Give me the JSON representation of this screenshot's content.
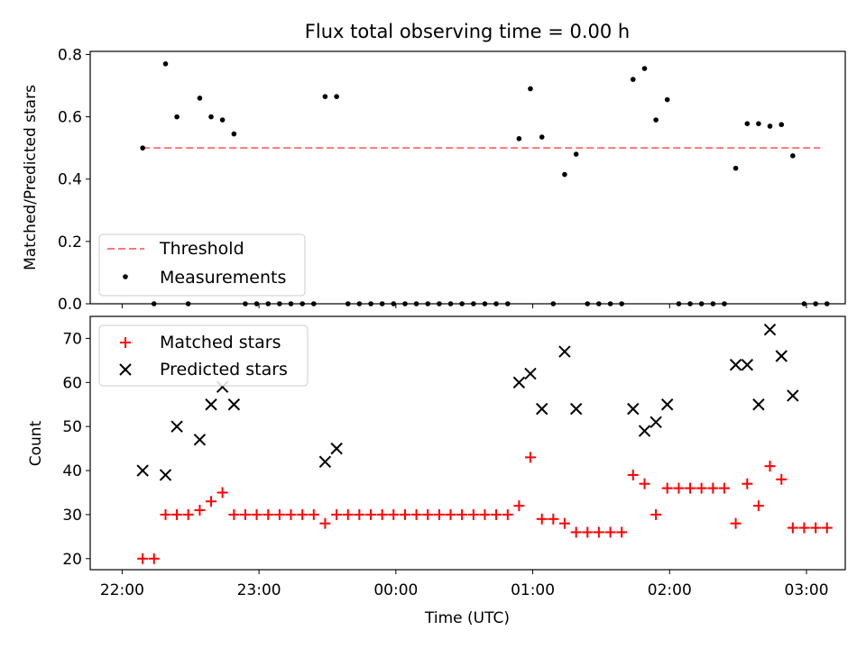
{
  "chart_data": [
    {
      "type": "scatter",
      "title": "Flux total observing time = 0.00 h",
      "ylabel": "Matched/Predicted stars",
      "xlabel": "",
      "xlim": [
        -0.2333,
        5.2833
      ],
      "ylim": [
        0.0,
        0.81
      ],
      "yticks": [
        0.0,
        0.2,
        0.4,
        0.6,
        0.8
      ],
      "ytick_labels": [
        "0.0",
        "0.2",
        "0.4",
        "0.6",
        "0.8"
      ],
      "x_unit": "hours since 22:00 UTC",
      "xticks": [
        0,
        1,
        2,
        3,
        4,
        5
      ],
      "grid": false,
      "legend": {
        "placement": "lower-left",
        "entries": [
          "Threshold",
          "Measurements"
        ]
      },
      "series": [
        {
          "name": "Threshold",
          "kind": "line",
          "style": "dashed",
          "color": "#ff7777",
          "x": [
            0.15,
            5.1
          ],
          "y": [
            0.5,
            0.5
          ]
        },
        {
          "name": "Measurements",
          "kind": "scatter",
          "marker": "dot",
          "color": "#000000",
          "x": [
            0.15,
            0.233,
            0.317,
            0.4,
            0.483,
            0.567,
            0.65,
            0.733,
            0.817,
            0.9,
            0.983,
            1.067,
            1.15,
            1.233,
            1.317,
            1.4,
            1.483,
            1.567,
            1.65,
            1.733,
            1.817,
            1.9,
            1.983,
            2.067,
            2.15,
            2.233,
            2.317,
            2.4,
            2.483,
            2.567,
            2.65,
            2.733,
            2.817,
            2.9,
            2.983,
            3.067,
            3.15,
            3.233,
            3.317,
            3.4,
            3.483,
            3.567,
            3.65,
            3.733,
            3.817,
            3.9,
            3.983,
            4.067,
            4.15,
            4.233,
            4.317,
            4.4,
            4.483,
            4.567,
            4.65,
            4.733,
            4.817,
            4.9,
            4.983,
            5.067,
            5.15
          ],
          "y": [
            0.5,
            0.0,
            0.77,
            0.6,
            0.0,
            0.66,
            0.6,
            0.59,
            0.545,
            0.0,
            0.0,
            0.0,
            0.0,
            0.0,
            0.0,
            0.0,
            0.665,
            0.665,
            0.0,
            0.0,
            0.0,
            0.0,
            0.0,
            0.0,
            0.0,
            0.0,
            0.0,
            0.0,
            0.0,
            0.0,
            0.0,
            0.0,
            0.0,
            0.53,
            0.69,
            0.535,
            0.0,
            0.415,
            0.48,
            0.0,
            0.0,
            0.0,
            0.0,
            0.72,
            0.755,
            0.59,
            0.655,
            0.0,
            0.0,
            0.0,
            0.0,
            0.0,
            0.435,
            0.578,
            0.578,
            0.57,
            0.575,
            0.475,
            0.0,
            0.0,
            0.0
          ]
        }
      ]
    },
    {
      "type": "scatter",
      "title": "",
      "ylabel": "Count",
      "xlabel": "Time (UTC)",
      "xlim": [
        -0.2333,
        5.2833
      ],
      "ylim": [
        17.5,
        75.0
      ],
      "yticks": [
        20,
        30,
        40,
        50,
        60,
        70
      ],
      "ytick_labels": [
        "20",
        "30",
        "40",
        "50",
        "60",
        "70"
      ],
      "xticks": [
        0,
        1,
        2,
        3,
        4,
        5
      ],
      "xtick_labels": [
        "22:00",
        "23:00",
        "00:00",
        "01:00",
        "02:00",
        "03:00"
      ],
      "x_unit": "hours since 22:00 UTC",
      "grid": false,
      "legend": {
        "placement": "top-left",
        "entries": [
          "Matched stars",
          "Predicted stars"
        ]
      },
      "series": [
        {
          "name": "Matched stars",
          "kind": "scatter",
          "marker": "plus",
          "color": "#ff0000",
          "x": [
            0.15,
            0.233,
            0.317,
            0.4,
            0.483,
            0.567,
            0.65,
            0.733,
            0.817,
            0.9,
            0.983,
            1.067,
            1.15,
            1.233,
            1.317,
            1.4,
            1.483,
            1.567,
            1.65,
            1.733,
            1.817,
            1.9,
            1.983,
            2.067,
            2.15,
            2.233,
            2.317,
            2.4,
            2.483,
            2.567,
            2.65,
            2.733,
            2.817,
            2.9,
            2.983,
            3.067,
            3.15,
            3.233,
            3.317,
            3.4,
            3.483,
            3.567,
            3.65,
            3.733,
            3.817,
            3.9,
            3.983,
            4.067,
            4.15,
            4.233,
            4.317,
            4.4,
            4.483,
            4.567,
            4.65,
            4.733,
            4.817,
            4.9,
            4.983,
            5.067,
            5.15
          ],
          "y": [
            20,
            20,
            30,
            30,
            30,
            31,
            33,
            35,
            30,
            30,
            30,
            30,
            30,
            30,
            30,
            30,
            28,
            30,
            30,
            30,
            30,
            30,
            30,
            30,
            30,
            30,
            30,
            30,
            30,
            30,
            30,
            30,
            30,
            32,
            43,
            29,
            29,
            28,
            26,
            26,
            26,
            26,
            26,
            39,
            37,
            30,
            36,
            36,
            36,
            36,
            36,
            36,
            28,
            37,
            32,
            41,
            38,
            27,
            27,
            27,
            27
          ]
        },
        {
          "name": "Predicted stars",
          "kind": "scatter",
          "marker": "x",
          "color": "#000000",
          "x": [
            0.15,
            0.317,
            0.4,
            0.567,
            0.65,
            0.733,
            0.817,
            1.483,
            1.567,
            2.9,
            2.983,
            3.067,
            3.233,
            3.317,
            3.733,
            3.817,
            3.9,
            3.983,
            4.483,
            4.567,
            4.65,
            4.733,
            4.817,
            4.9
          ],
          "y": [
            40,
            39,
            50,
            47,
            55,
            59,
            55,
            42,
            45,
            60,
            62,
            54,
            67,
            54,
            54,
            49,
            51,
            55,
            64,
            64,
            55,
            72,
            66,
            57
          ]
        }
      ]
    }
  ]
}
